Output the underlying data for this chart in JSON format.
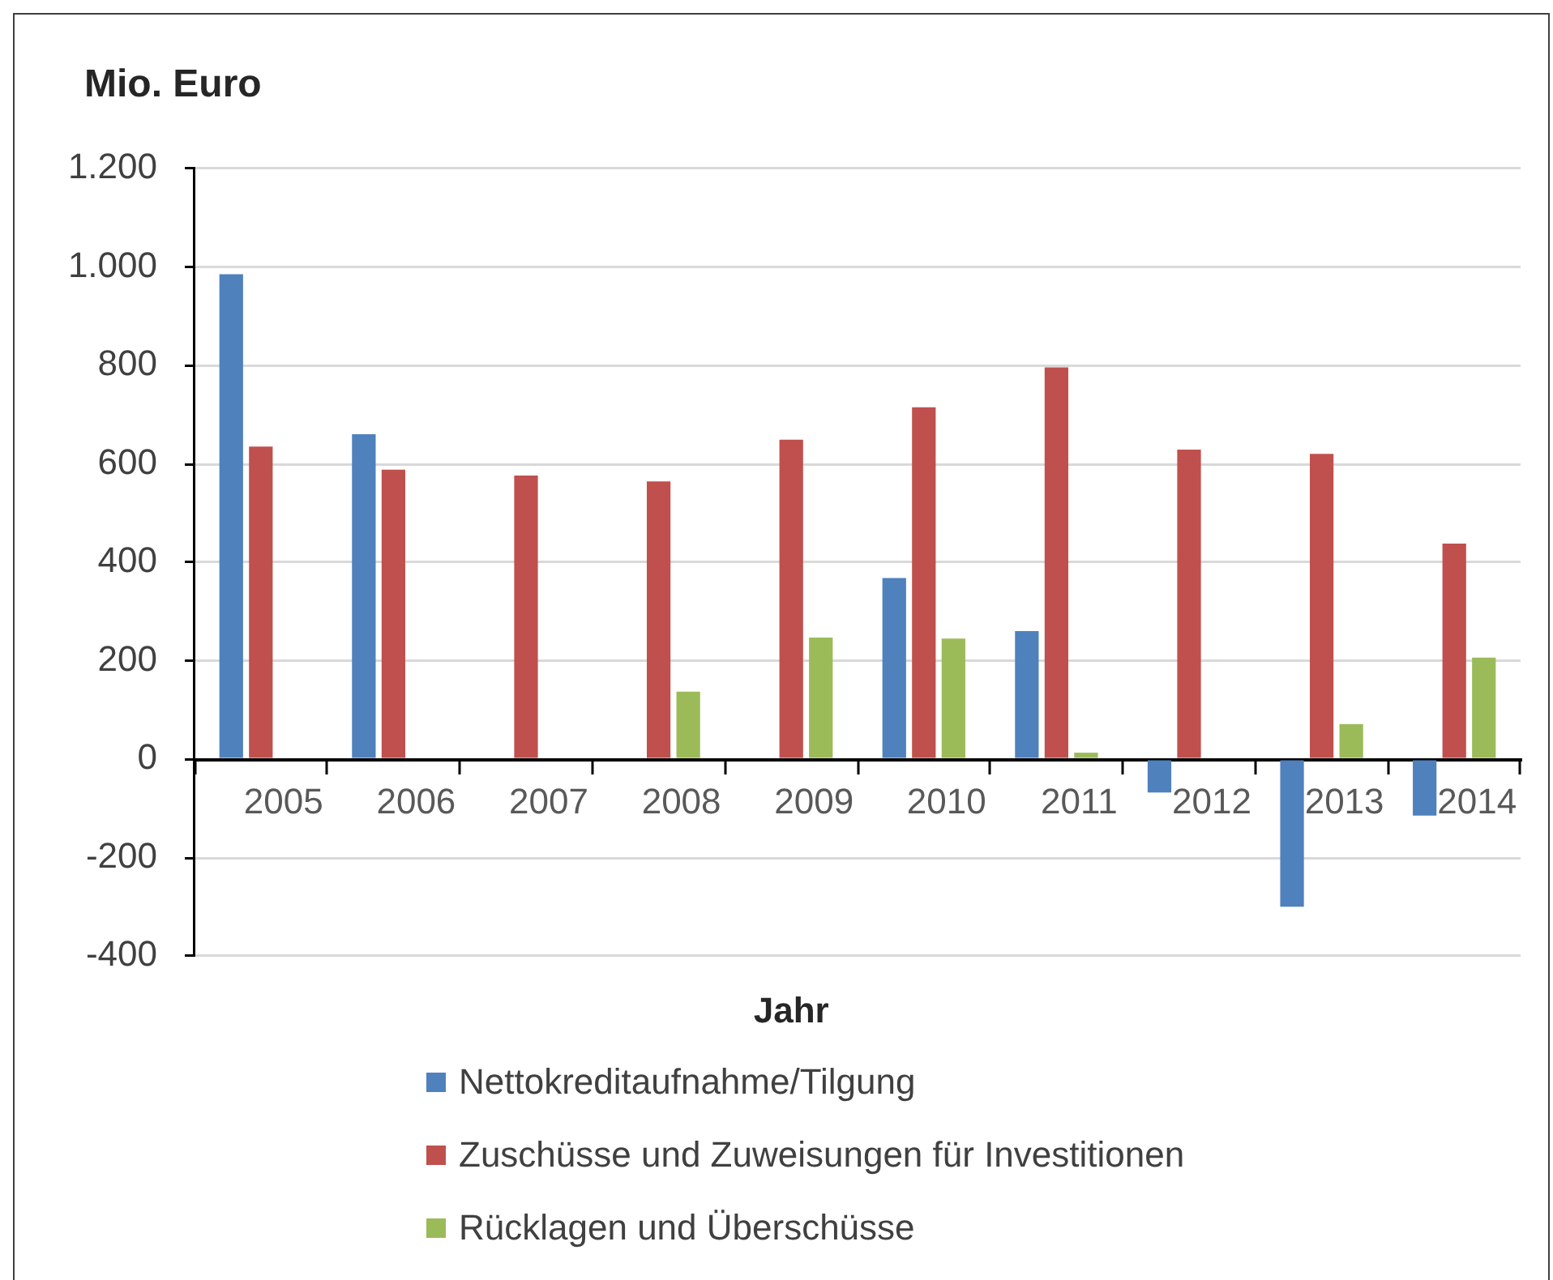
{
  "chart_data": {
    "type": "bar",
    "ylabel": "Mio. Euro",
    "xlabel": "Jahr",
    "categories": [
      "2005",
      "2006",
      "2007",
      "2008",
      "2009",
      "2010",
      "2011",
      "2012",
      "2013",
      "2014"
    ],
    "series": [
      {
        "name": "Nettokreditaufnahme/Tilgung",
        "color": "#4f81bd",
        "values": [
          985,
          660,
          null,
          null,
          null,
          368,
          260,
          -68,
          -300,
          -115
        ]
      },
      {
        "name": "Zuschüsse und Zuweisungen für Investitionen",
        "color": "#c0504d",
        "values": [
          635,
          588,
          576,
          564,
          649,
          715,
          796,
          629,
          620,
          438
        ]
      },
      {
        "name": "Rücklagen und Überschüsse",
        "color": "#9bbb59",
        "values": [
          null,
          null,
          null,
          137,
          247,
          245,
          13,
          null,
          71,
          206
        ]
      }
    ],
    "ylim": [
      -400,
      1200
    ],
    "yticks": [
      -400,
      -200,
      0,
      200,
      400,
      600,
      800,
      {
        "value": 1000,
        "label": "1.000"
      },
      {
        "value": 1200,
        "label": "1.200"
      }
    ],
    "grid": "y",
    "legend": "bottom"
  }
}
